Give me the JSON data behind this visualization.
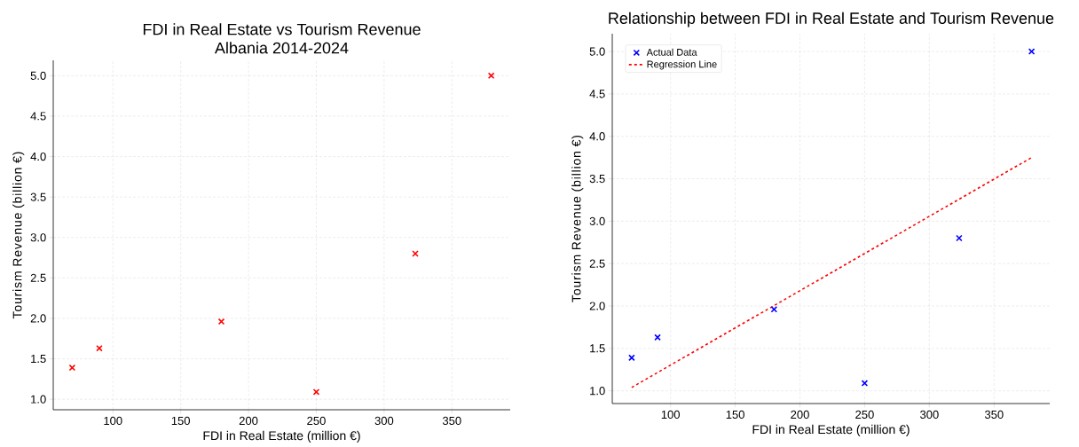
{
  "chart_data": [
    {
      "type": "scatter",
      "title": "FDI in Real Estate vs Tourism Revenue",
      "subtitle": "Albania 2014-2024",
      "xlabel": "FDI in Real Estate (million €)",
      "ylabel": "Tourism Revenue (billion €)",
      "x": [
        70,
        90,
        180,
        250,
        323,
        379
      ],
      "values": [
        1.39,
        1.63,
        1.96,
        1.09,
        2.8,
        5.0
      ],
      "color": "#ff0000",
      "marker": "cross",
      "xlim": [
        56,
        393
      ],
      "ylim": [
        0.87,
        5.19
      ],
      "xticks": [
        100,
        150,
        200,
        250,
        300,
        350
      ],
      "yticks": [
        {
          "value": 1,
          "label": "1.0"
        },
        1.5,
        {
          "value": 2,
          "label": "2.0"
        },
        2.5,
        {
          "value": 3,
          "label": "3.0"
        },
        3.5,
        {
          "value": 4,
          "label": "4.0"
        },
        4.5,
        {
          "value": 5,
          "label": "5.0"
        }
      ],
      "grid": true
    },
    {
      "type": "scatter",
      "title": "Relationship between FDI in Real Estate and Tourism Revenue",
      "xlabel": "FDI in Real Estate (million €)",
      "ylabel": "Tourism Revenue (billion €)",
      "series": [
        {
          "name": "Actual Data",
          "color": "#0000ff",
          "marker": "cross",
          "x": [
            70,
            90,
            180,
            250,
            323,
            379
          ],
          "values": [
            1.39,
            1.63,
            1.96,
            1.09,
            2.8,
            5.0
          ]
        },
        {
          "name": "Regression Line",
          "type": "line",
          "color": "#ff0000",
          "line_style": "dashed",
          "marker": "none",
          "x": [
            70,
            379
          ],
          "values": [
            1.04,
            3.75
          ]
        }
      ],
      "xlim": [
        55,
        393
      ],
      "ylim": [
        0.85,
        5.21
      ],
      "xticks": [
        100,
        150,
        200,
        250,
        300,
        350
      ],
      "yticks": [
        {
          "value": 1,
          "label": "1.0"
        },
        1.5,
        {
          "value": 2,
          "label": "2.0"
        },
        2.5,
        {
          "value": 3,
          "label": "3.0"
        },
        3.5,
        {
          "value": 4,
          "label": "4.0"
        },
        4.5,
        {
          "value": 5,
          "label": "5.0"
        }
      ],
      "grid": true,
      "legend": "top left"
    }
  ]
}
